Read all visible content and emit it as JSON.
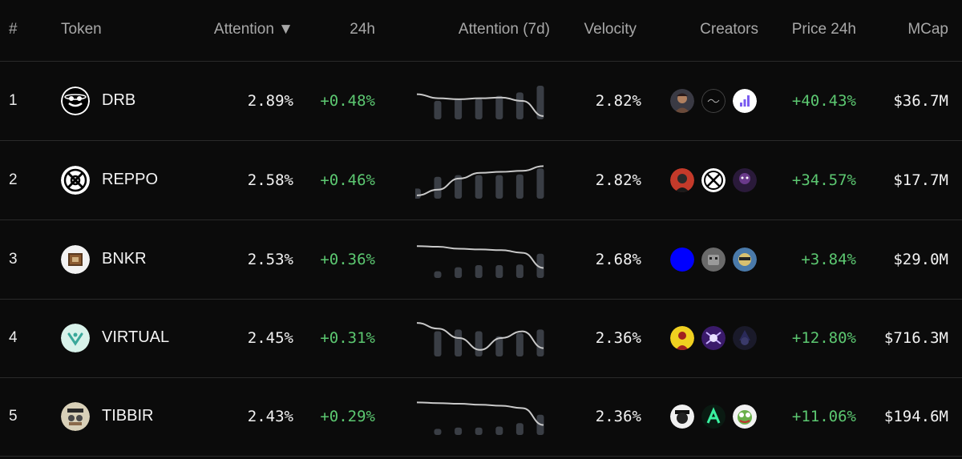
{
  "header": {
    "rank": "#",
    "token": "Token",
    "attention": "Attention ▼",
    "change24h": "24h",
    "attention7d": "Attention (7d)",
    "velocity": "Velocity",
    "creators": "Creators",
    "price24h": "Price 24h",
    "mcap": "MCap"
  },
  "colors": {
    "positive": "#5cc871",
    "bar": "#3a3e45",
    "line": "#c9c9c9"
  },
  "rows": [
    {
      "rank": "1",
      "token": "DRB",
      "logo": "drb-logo-icon",
      "attention": "2.89%",
      "change24h": "+0.48%",
      "velocity": "2.82%",
      "price24h": "+40.43%",
      "mcap": "$36.7M",
      "bars": [
        0.55,
        0.62,
        0.62,
        0.7,
        0.8,
        1.0
      ],
      "line": [
        0.3,
        0.42,
        0.45,
        0.42,
        0.4,
        0.5,
        0.95
      ],
      "creators": [
        "creator-avatar-1",
        "creator-avatar-2",
        "creator-avatar-3"
      ]
    },
    {
      "rank": "2",
      "token": "REPPO",
      "logo": "reppo-logo-icon",
      "attention": "2.58%",
      "change24h": "+0.46%",
      "velocity": "2.82%",
      "price24h": "+34.57%",
      "mcap": "$17.7M",
      "bars": [
        0.3,
        0.65,
        0.7,
        0.7,
        0.7,
        0.72,
        0.9
      ],
      "line": [
        0.95,
        0.78,
        0.45,
        0.28,
        0.25,
        0.22,
        0.08
      ],
      "creators": [
        "creator-avatar-4",
        "creator-avatar-5",
        "creator-avatar-6"
      ]
    },
    {
      "rank": "3",
      "token": "BNKR",
      "logo": "bnkr-logo-icon",
      "attention": "2.53%",
      "change24h": "+0.36%",
      "velocity": "2.68%",
      "price24h": "+3.84%",
      "mcap": "$29.0M",
      "bars": [
        0.2,
        0.32,
        0.38,
        0.38,
        0.4,
        0.72
      ],
      "line": [
        0.1,
        0.12,
        0.18,
        0.2,
        0.22,
        0.3,
        0.75
      ],
      "creators": [
        "creator-avatar-7",
        "creator-avatar-8",
        "creator-avatar-9"
      ]
    },
    {
      "rank": "4",
      "token": "VIRTUAL",
      "logo": "virtual-logo-icon",
      "attention": "2.45%",
      "change24h": "+0.31%",
      "velocity": "2.36%",
      "price24h": "+12.80%",
      "mcap": "$716.3M",
      "bars": [
        0.75,
        0.8,
        0.75,
        0.6,
        0.7,
        0.8
      ],
      "line": [
        0.05,
        0.22,
        0.5,
        0.85,
        0.5,
        0.3,
        0.8
      ],
      "creators": [
        "creator-avatar-10",
        "creator-avatar-11",
        "creator-avatar-12"
      ]
    },
    {
      "rank": "5",
      "token": "TIBBIR",
      "logo": "tibbir-logo-icon",
      "attention": "2.43%",
      "change24h": "+0.29%",
      "velocity": "2.36%",
      "price24h": "+11.06%",
      "mcap": "$194.6M",
      "bars": [
        0.18,
        0.22,
        0.22,
        0.25,
        0.35,
        0.6
      ],
      "line": [
        0.08,
        0.1,
        0.12,
        0.15,
        0.18,
        0.25,
        0.75
      ],
      "creators": [
        "creator-avatar-13",
        "creator-avatar-14",
        "creator-avatar-15"
      ]
    }
  ]
}
